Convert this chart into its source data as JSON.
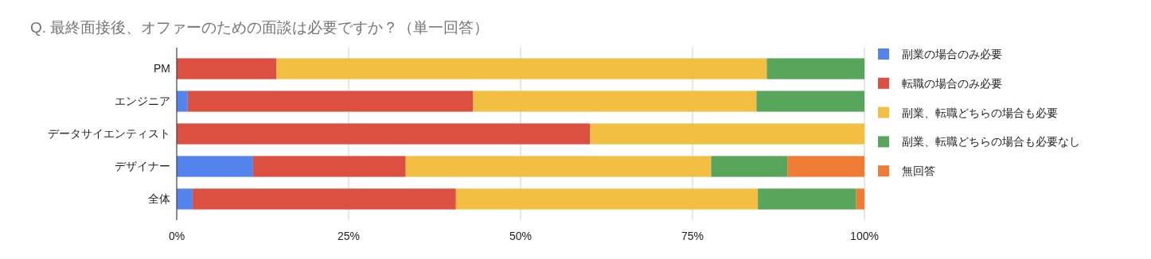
{
  "chart_data": {
    "type": "bar",
    "orientation": "horizontal",
    "stacked": true,
    "title": "Q. 最終面接後、オファーのための面談は必要ですか？（単一回答）",
    "categories": [
      "PM",
      "エンジニア",
      "データサイエンティスト",
      "デザイナー",
      "全体"
    ],
    "series": [
      {
        "name": "副業の場合のみ必要",
        "color": "#5383ec",
        "values": [
          0,
          1.6,
          0,
          11.1,
          2.3
        ]
      },
      {
        "name": "転職の場合のみ必要",
        "color": "#db5040",
        "values": [
          14.5,
          41.5,
          60.1,
          22.2,
          38.3
        ]
      },
      {
        "name": "副業、転職どちらの場合も必要",
        "color": "#f2bf42",
        "values": [
          71.3,
          41.2,
          39.9,
          44.4,
          43.9
        ]
      },
      {
        "name": "副業、転職どちらの場合も必要なし",
        "color": "#58a55c",
        "values": [
          14.2,
          15.7,
          0,
          11.1,
          14.3
        ]
      },
      {
        "name": "無回答",
        "color": "#ef7c34",
        "values": [
          0,
          0,
          0,
          11.2,
          1.2
        ]
      }
    ],
    "xlim": [
      0,
      100
    ],
    "xticks": [
      {
        "value": 0,
        "label": "0%"
      },
      {
        "value": 25,
        "label": "25%"
      },
      {
        "value": 50,
        "label": "50%"
      },
      {
        "value": 75,
        "label": "75%"
      },
      {
        "value": 100,
        "label": "100%"
      }
    ],
    "grid": "x",
    "legend": "right"
  }
}
